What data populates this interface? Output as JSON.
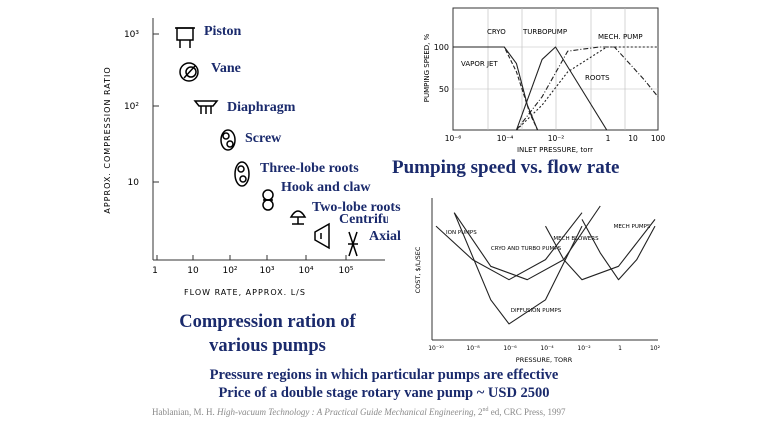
{
  "slide": {
    "pumping_title": "Pumping speed vs. flow rate",
    "compression_title_line1": "Compression ration of",
    "compression_title_line2": "various pumps",
    "caption_line1": "Pressure regions in which particular pumps are effective",
    "caption_line2": "Price of a double stage rotary vane pump ~ USD 2500",
    "citation_author": "Hablanian, M. H. ",
    "citation_title": "High-vacuum Technology : A Practical Guide Mechanical Engineering",
    "citation_edition": ", 2",
    "citation_sup": "nd",
    "citation_rest": " ed, CRC Press, 1997"
  },
  "chart_data": [
    {
      "type": "scatter",
      "ylabel": "APPROX. COMPRESSION RATIO",
      "xlabel": "FLOW RATE, APPROX. L/S",
      "x_scale": "log",
      "y_scale": "log",
      "x_ticks": [
        "1",
        "10",
        "10²",
        "10³",
        "10⁴",
        "10⁵"
      ],
      "y_ticks": [
        "10³",
        "10²",
        "10"
      ],
      "points": [
        {
          "label": "Piston",
          "x": 10,
          "y": 1000
        },
        {
          "label": "Vane",
          "x": 15,
          "y": 350
        },
        {
          "label": "Diaphragm",
          "x": 45,
          "y": 90
        },
        {
          "label": "Screw",
          "x": 100,
          "y": 35
        },
        {
          "label": "Three-lobe roots",
          "x": 300,
          "y": 10
        },
        {
          "label": "Hook and claw",
          "x": 400,
          "y": 5
        },
        {
          "label": "Two-lobe roots",
          "x": 1500,
          "y": 2.5
        },
        {
          "label": "Centrifugal",
          "x": 10000,
          "y": 1.5
        },
        {
          "label": "Axial",
          "x": 100000,
          "y": 1.2
        }
      ]
    },
    {
      "type": "line",
      "ylabel": "PUMPING SPEED, %",
      "xlabel": "INLET PRESSURE, torr",
      "x_scale": "log",
      "x_ticks": [
        "10⁻⁶",
        "10⁻⁴",
        "10⁻²",
        "1",
        "10",
        "100"
      ],
      "y_ticks": [
        "100",
        "50"
      ],
      "series": [
        {
          "name": "CRYO",
          "x": [
            1e-06,
            0.0001,
            0.0003,
            0.0008,
            0.002
          ],
          "y": [
            100,
            100,
            80,
            30,
            0
          ]
        },
        {
          "name": "VAPOR JET",
          "x": [
            1e-06,
            0.0001,
            0.0003,
            0.001,
            0.002
          ],
          "y": [
            100,
            100,
            70,
            20,
            0
          ]
        },
        {
          "name": "TURBOPUMP",
          "x": [
            0.0003,
            0.003,
            0.01,
            0.1,
            1
          ],
          "y": [
            0,
            85,
            100,
            50,
            0
          ]
        },
        {
          "name": "ROOTS",
          "x": [
            0.0003,
            0.003,
            0.03,
            0.5,
            2,
            30,
            100
          ],
          "y": [
            0,
            40,
            95,
            100,
            100,
            60,
            40
          ]
        },
        {
          "name": "MECH. PUMP",
          "x": [
            0.0003,
            0.003,
            0.03,
            1,
            10,
            100
          ],
          "y": [
            0,
            30,
            70,
            100,
            100,
            100
          ]
        }
      ]
    },
    {
      "type": "line",
      "ylabel": "COST, $/L/SEC",
      "xlabel": "PRESSURE, TORR",
      "x_scale": "log",
      "x_ticks": [
        "10⁻¹⁰",
        "10⁻⁸",
        "10⁻⁶",
        "10⁻⁴",
        "10⁻²",
        "1",
        "10²"
      ],
      "series": [
        {
          "name": "ION PUMPS",
          "x": [
            1e-10,
            1e-08,
            1e-06,
            0.0001,
            0.01
          ],
          "y": [
            0.85,
            0.6,
            0.45,
            0.6,
            0.95
          ]
        },
        {
          "name": "CRYO AND TURBO PUMPS",
          "x": [
            1e-09,
            1e-07,
            1e-05,
            0.001,
            0.1
          ],
          "y": [
            0.95,
            0.55,
            0.45,
            0.6,
            1.0
          ]
        },
        {
          "name": "MECH BLOWERS",
          "x": [
            0.0001,
            0.001,
            0.01,
            1,
            100
          ],
          "y": [
            0.85,
            0.6,
            0.45,
            0.55,
            0.9
          ]
        },
        {
          "name": "MECH PUMPS",
          "x": [
            0.01,
            0.1,
            1,
            10,
            100
          ],
          "y": [
            0.9,
            0.65,
            0.45,
            0.6,
            0.85
          ]
        },
        {
          "name": "DIFFUSION PUMPS",
          "x": [
            1e-09,
            1e-07,
            1e-06,
            0.0001,
            0.01
          ],
          "y": [
            0.95,
            0.3,
            0.12,
            0.3,
            0.85
          ]
        }
      ]
    }
  ]
}
